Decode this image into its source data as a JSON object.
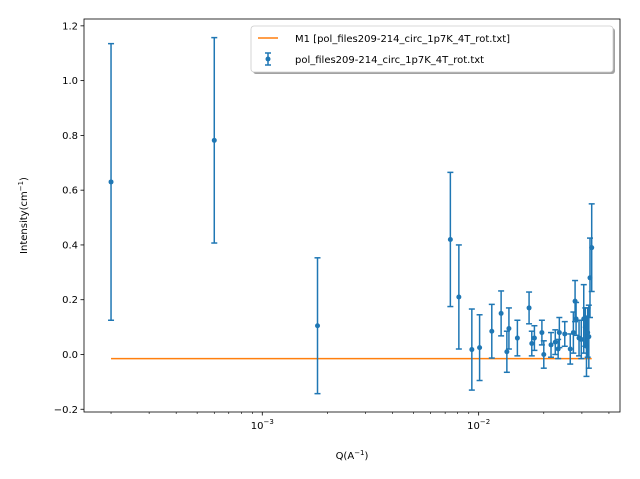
{
  "chart_data": {
    "type": "scatter",
    "x_scale": "log",
    "xlim": [
      0.00015,
      0.045
    ],
    "ylim": [
      -0.21,
      1.225
    ],
    "xlabel_base": "Q(A",
    "xlabel_sup": "−1",
    "xlabel_end": ")",
    "ylabel_base": "Intensity(cm",
    "ylabel_sup": "−1",
    "ylabel_end": ")",
    "y_ticks": [
      {
        "value": -0.2,
        "label": "−0.2"
      },
      {
        "value": 0.0,
        "label": "0.0"
      },
      {
        "value": 0.2,
        "label": "0.2"
      },
      {
        "value": 0.4,
        "label": "0.4"
      },
      {
        "value": 0.6,
        "label": "0.6"
      },
      {
        "value": 0.8,
        "label": "0.8"
      },
      {
        "value": 1.0,
        "label": "1.0"
      },
      {
        "value": 1.2,
        "label": "1.2"
      }
    ],
    "x_major_ticks": [
      {
        "value": 0.001,
        "base": "10",
        "exp": "−3"
      },
      {
        "value": 0.01,
        "base": "10",
        "exp": "−2"
      }
    ],
    "grid": false,
    "legend": {
      "placement": "top-right",
      "entries": [
        {
          "label": "M1 [pol_files209-214_circ_1p7K_4T_rot.txt]",
          "kind": "line",
          "color": "#ff7f0e"
        },
        {
          "label": "pol_files209-214_circ_1p7K_4T_rot.txt",
          "kind": "errorbar",
          "color": "#1f77b4"
        }
      ]
    },
    "series": [
      {
        "name": "pol_files209-214_circ_1p7K_4T_rot.txt",
        "kind": "errorbar",
        "color": "#1f77b4",
        "points": [
          {
            "x": 0.0002,
            "y": 0.63,
            "err": 0.505
          },
          {
            "x": 0.0006,
            "y": 0.782,
            "err": 0.375
          },
          {
            "x": 0.0018,
            "y": 0.105,
            "err": 0.248
          },
          {
            "x": 0.0074,
            "y": 0.42,
            "err": 0.245
          },
          {
            "x": 0.0081,
            "y": 0.21,
            "err": 0.19
          },
          {
            "x": 0.0093,
            "y": 0.018,
            "err": 0.148
          },
          {
            "x": 0.0101,
            "y": 0.025,
            "err": 0.12
          },
          {
            "x": 0.0115,
            "y": 0.085,
            "err": 0.098
          },
          {
            "x": 0.0127,
            "y": 0.15,
            "err": 0.082
          },
          {
            "x": 0.0135,
            "y": 0.01,
            "err": 0.075
          },
          {
            "x": 0.0138,
            "y": 0.095,
            "err": 0.075
          },
          {
            "x": 0.0151,
            "y": 0.06,
            "err": 0.065
          },
          {
            "x": 0.0171,
            "y": 0.17,
            "err": 0.058
          },
          {
            "x": 0.0176,
            "y": 0.04,
            "err": 0.045
          },
          {
            "x": 0.0181,
            "y": 0.06,
            "err": 0.045
          },
          {
            "x": 0.0196,
            "y": 0.08,
            "err": 0.045
          },
          {
            "x": 0.02,
            "y": 0.0,
            "err": 0.05
          },
          {
            "x": 0.0216,
            "y": 0.035,
            "err": 0.045
          },
          {
            "x": 0.0226,
            "y": 0.045,
            "err": 0.045
          },
          {
            "x": 0.0233,
            "y": 0.02,
            "err": 0.035
          },
          {
            "x": 0.0236,
            "y": 0.08,
            "err": 0.055
          },
          {
            "x": 0.025,
            "y": 0.075,
            "err": 0.045
          },
          {
            "x": 0.0265,
            "y": 0.02,
            "err": 0.055
          },
          {
            "x": 0.0274,
            "y": 0.08,
            "err": 0.075
          },
          {
            "x": 0.0279,
            "y": 0.195,
            "err": 0.075
          },
          {
            "x": 0.0282,
            "y": 0.13,
            "err": 0.06
          },
          {
            "x": 0.0291,
            "y": 0.06,
            "err": 0.065
          },
          {
            "x": 0.0298,
            "y": 0.055,
            "err": 0.07
          },
          {
            "x": 0.0306,
            "y": 0.13,
            "err": 0.125
          },
          {
            "x": 0.0311,
            "y": 0.1,
            "err": 0.07
          },
          {
            "x": 0.0315,
            "y": 0.03,
            "err": 0.11
          },
          {
            "x": 0.0319,
            "y": 0.08,
            "err": 0.09
          },
          {
            "x": 0.0323,
            "y": 0.065,
            "err": 0.115
          },
          {
            "x": 0.0327,
            "y": 0.28,
            "err": 0.145
          },
          {
            "x": 0.0333,
            "y": 0.39,
            "err": 0.16
          }
        ]
      },
      {
        "name": "M1 [pol_files209-214_circ_1p7K_4T_rot.txt]",
        "kind": "line",
        "color": "#ff7f0e",
        "x": [
          0.0002,
          0.0333
        ],
        "y": [
          -0.015,
          -0.015
        ]
      }
    ]
  }
}
